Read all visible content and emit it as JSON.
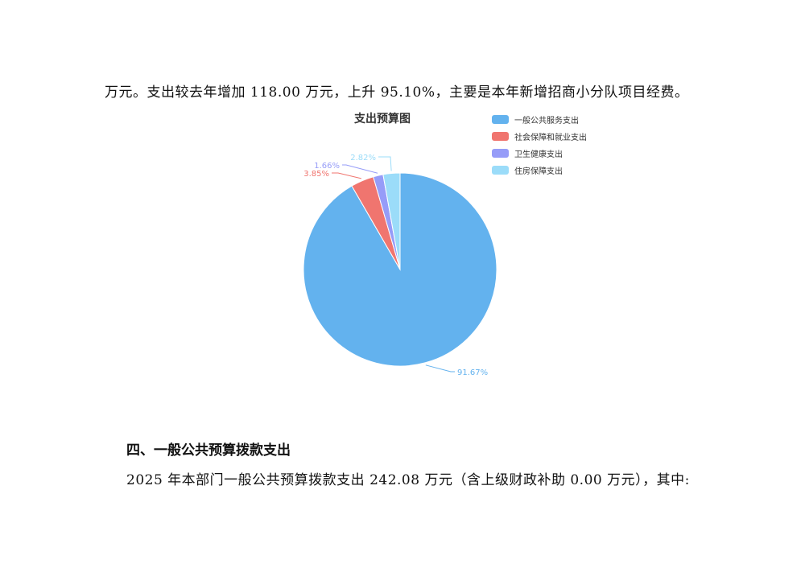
{
  "text": {
    "para1": "万元。支出较去年增加 118.00 万元，上升 95.10%，主要是本年新增招商小分队项目经费。",
    "heading4": "四、一般公共预算拨款支出",
    "para2": "2025 年本部门一般公共预算拨款支出 242.08 万元（含上级财政补助 0.00 万元），其中:"
  },
  "chart_data": {
    "type": "pie",
    "title": "支出预算图",
    "legend_placement": "top-right",
    "start_angle": "top, clockwise",
    "series": [
      {
        "name": "一般公共服务支出",
        "value": 91.67,
        "label": "91.67%",
        "color": "#63b2ee"
      },
      {
        "name": "社会保障和就业支出",
        "value": 3.85,
        "label": "3.85%",
        "color": "#f0756f"
      },
      {
        "name": "卫生健康支出",
        "value": 1.66,
        "label": "1.66%",
        "color": "#969cf8"
      },
      {
        "name": "住房保障支出",
        "value": 2.82,
        "label": "2.82%",
        "color": "#9bdcf9"
      }
    ]
  }
}
